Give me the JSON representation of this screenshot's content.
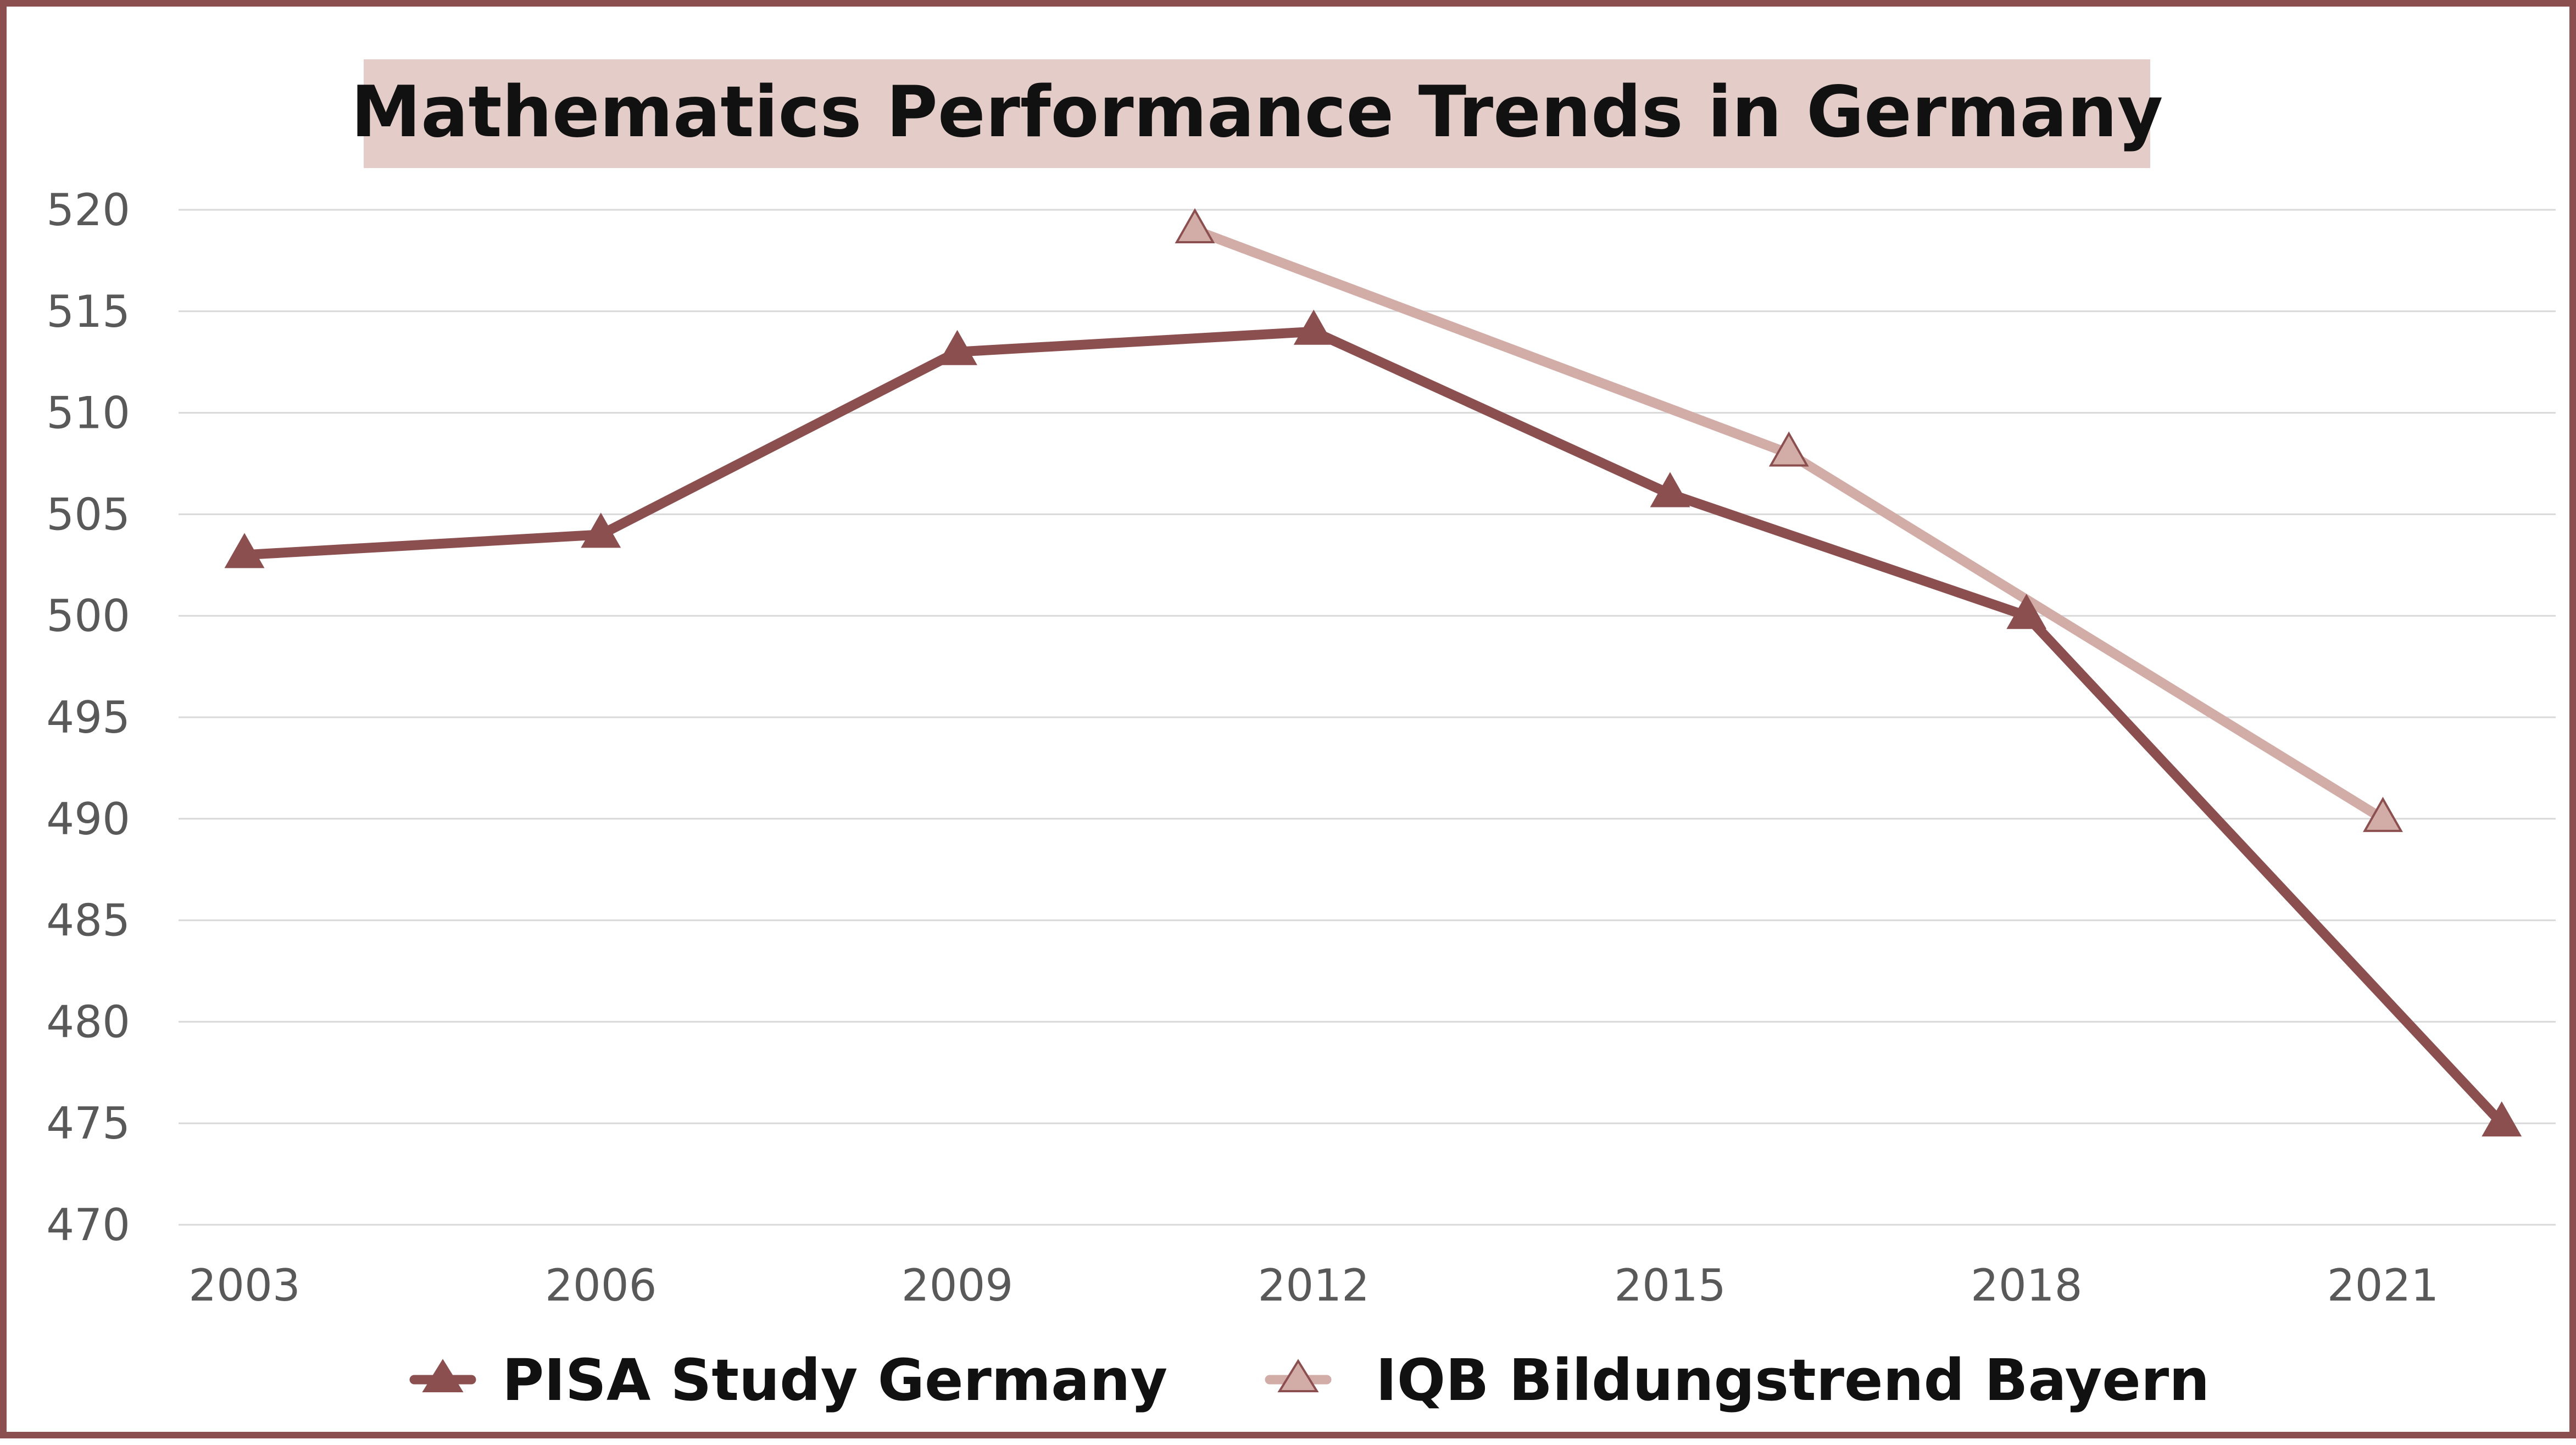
{
  "chart_data": {
    "type": "line",
    "title": "Mathematics Performance Trends in Germany",
    "xlabel": "",
    "ylabel": "",
    "x_ticks": [
      "2003",
      "2006",
      "2009",
      "2012",
      "2015",
      "2018",
      "2021"
    ],
    "xlim": [
      2003,
      2022
    ],
    "ylim": [
      470,
      520
    ],
    "y_ticks": [
      520,
      515,
      510,
      505,
      500,
      495,
      490,
      485,
      480,
      475,
      470
    ],
    "grid": true,
    "legend_position": "bottom",
    "series": [
      {
        "name": "PISA Study Germany",
        "color": "#8c4f50",
        "marker": "filled-triangle",
        "x": [
          2003,
          2006,
          2009,
          2012,
          2015,
          2018,
          2022
        ],
        "y": [
          503,
          504,
          513,
          514,
          506,
          500,
          475
        ]
      },
      {
        "name": "IQB Bildungstrend Bayern",
        "color": "#d2aca6",
        "marker": "light-triangle",
        "x": [
          2011,
          2016,
          2021
        ],
        "y": [
          519,
          508,
          490
        ]
      }
    ],
    "colors": {
      "frame": "#8c4f50",
      "title_background": "#e4cdc8",
      "grid": "#d9d9d9",
      "tick_text": "#595959"
    }
  }
}
